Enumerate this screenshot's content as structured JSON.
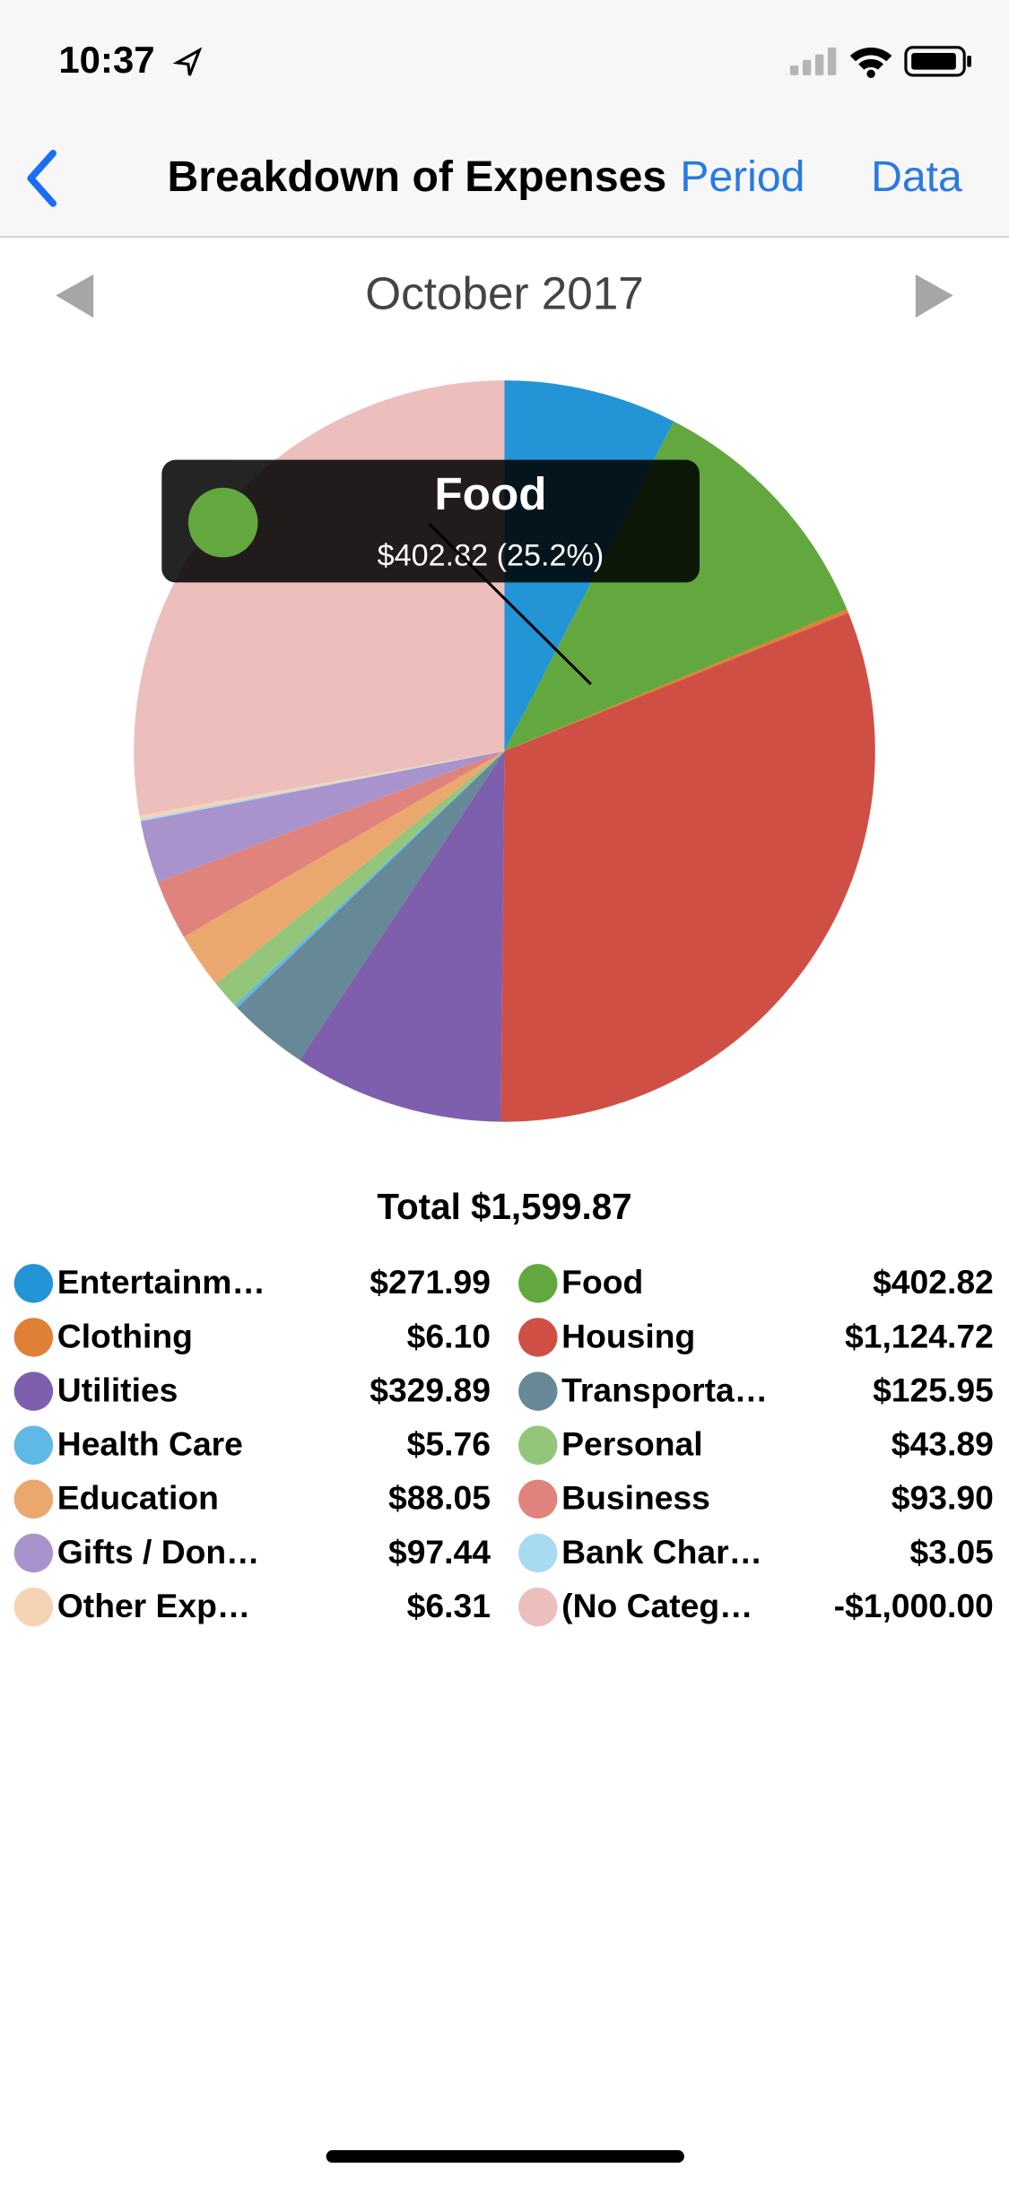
{
  "status_bar": {
    "time": "10:37"
  },
  "nav": {
    "title": "Breakdown of Expenses",
    "period_button": "Period",
    "data_button": "Data"
  },
  "period": "October 2017",
  "tooltip": {
    "title": "Food",
    "detail": "$402.82 (25.2%)"
  },
  "chart_data": {
    "type": "pie",
    "total": "Total $1,599.87",
    "categories": [
      "Entertainm…",
      "Food",
      "Clothing",
      "Housing",
      "Utilities",
      "Transporta…",
      "Health Care",
      "Personal",
      "Education",
      "Business",
      "Gifts / Don…",
      "Bank Char…",
      "Other Exp…",
      "(No Categ…"
    ],
    "values": [
      271.99,
      402.82,
      6.1,
      1124.72,
      329.89,
      125.95,
      5.76,
      43.89,
      88.05,
      93.9,
      97.44,
      3.05,
      6.31,
      -1000.0
    ],
    "value_labels": [
      "$271.99",
      "$402.82",
      "$6.10",
      "$1,124.72",
      "$329.89",
      "$125.95",
      "$5.76",
      "$43.89",
      "$88.05",
      "$93.90",
      "$97.44",
      "$3.05",
      "$6.31",
      "-$1,000.00"
    ],
    "colors": [
      "#2394d6",
      "#62a83e",
      "#e07f36",
      "#d04f45",
      "#7e5fae",
      "#678897",
      "#5fb8e6",
      "#93c67a",
      "#eaa86f",
      "#e0837d",
      "#a993cc",
      "#a8daf1",
      "#f5d4b5",
      "#ecbfbd"
    ]
  }
}
